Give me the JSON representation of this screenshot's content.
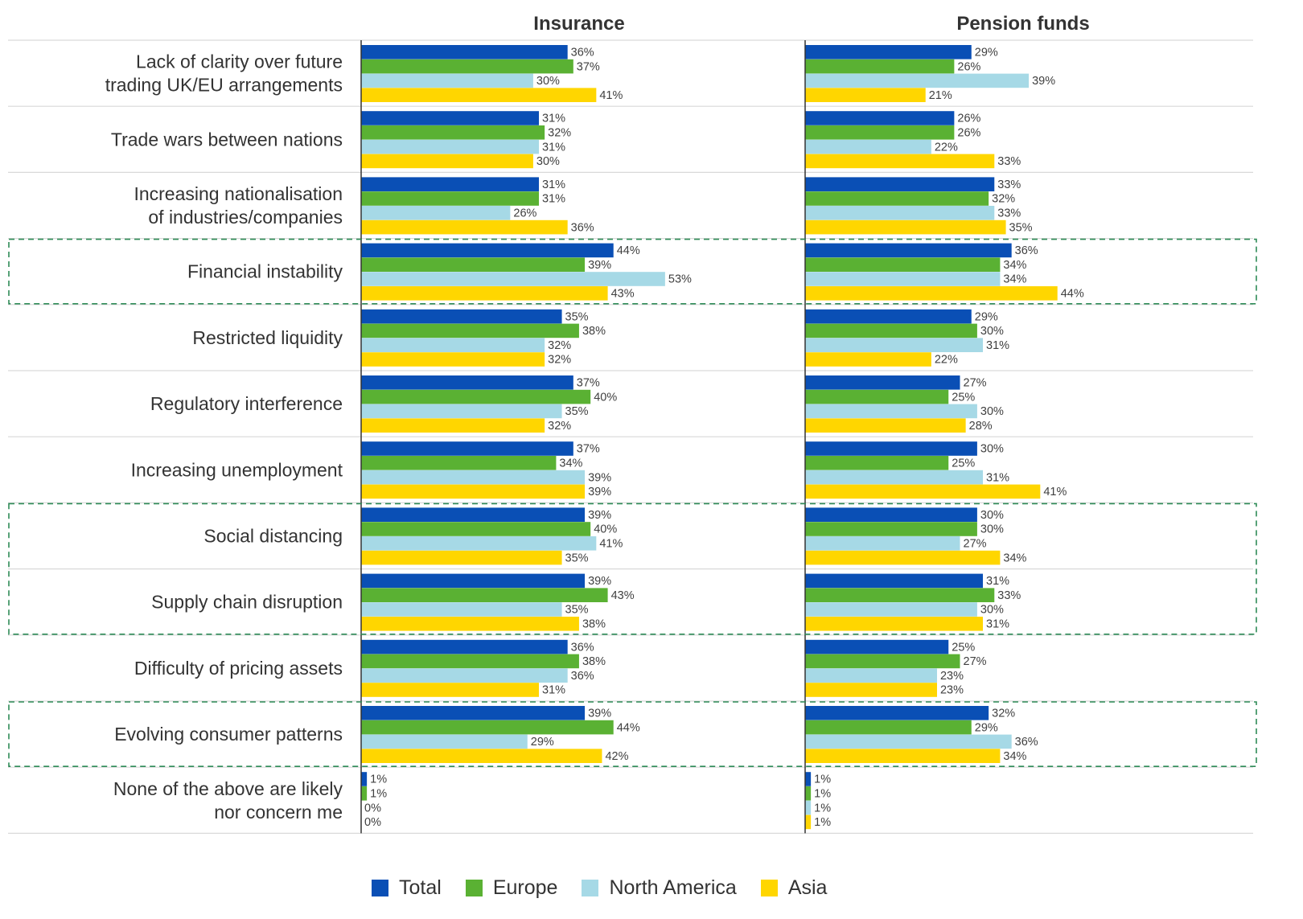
{
  "chart_data": {
    "type": "bar",
    "orientation": "horizontal",
    "panels": [
      "Insurance",
      "Pension funds"
    ],
    "categories": [
      [
        "Lack of clarity over future",
        "trading UK/EU arrangements"
      ],
      [
        "Trade wars between nations"
      ],
      [
        "Increasing nationalisation",
        "of industries/companies"
      ],
      [
        "Financial instability"
      ],
      [
        "Restricted liquidity"
      ],
      [
        "Regulatory interference"
      ],
      [
        "Increasing unemployment"
      ],
      [
        "Social distancing"
      ],
      [
        "Supply chain disruption"
      ],
      [
        "Difficulty of pricing assets"
      ],
      [
        "Evolving consumer patterns"
      ],
      [
        "None of the above are likely",
        "nor concern me"
      ]
    ],
    "series_names": [
      "Total",
      "Europe",
      "North America",
      "Asia"
    ],
    "colors": [
      "#0A4FB5",
      "#5AB133",
      "#A6D9E6",
      "#FFD600"
    ],
    "values": {
      "Insurance": [
        [
          36,
          37,
          30,
          41
        ],
        [
          31,
          32,
          31,
          30
        ],
        [
          31,
          31,
          26,
          36
        ],
        [
          44,
          39,
          53,
          43
        ],
        [
          35,
          38,
          32,
          32
        ],
        [
          37,
          40,
          35,
          32
        ],
        [
          37,
          34,
          39,
          39
        ],
        [
          39,
          40,
          41,
          35
        ],
        [
          39,
          43,
          35,
          38
        ],
        [
          36,
          38,
          36,
          31
        ],
        [
          39,
          44,
          29,
          42
        ],
        [
          1,
          1,
          0,
          0
        ]
      ],
      "Pension funds": [
        [
          29,
          26,
          39,
          21
        ],
        [
          26,
          26,
          22,
          33
        ],
        [
          33,
          32,
          33,
          35
        ],
        [
          36,
          34,
          34,
          44
        ],
        [
          29,
          30,
          31,
          22
        ],
        [
          27,
          25,
          30,
          28
        ],
        [
          30,
          25,
          31,
          41
        ],
        [
          30,
          30,
          27,
          34
        ],
        [
          31,
          33,
          30,
          31
        ],
        [
          25,
          27,
          23,
          23
        ],
        [
          32,
          29,
          36,
          34
        ],
        [
          1,
          1,
          1,
          1
        ]
      ]
    },
    "value_suffix": "%",
    "highlighted_groups": [
      [
        3
      ],
      [
        7,
        8
      ],
      [
        10
      ]
    ],
    "highlight_color": "#2E8B57",
    "legend_position": "bottom"
  }
}
